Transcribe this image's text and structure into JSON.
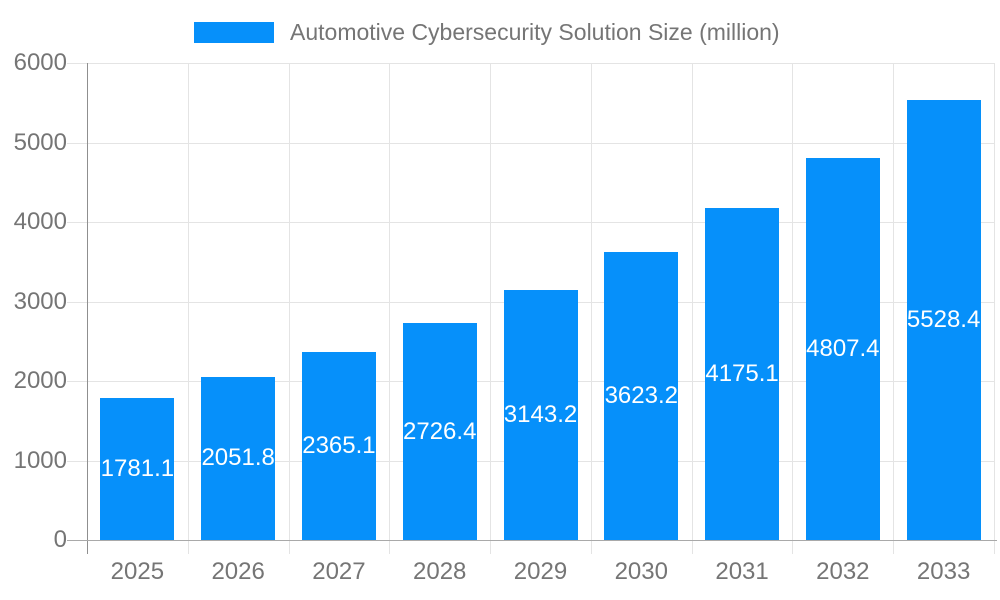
{
  "legend": {
    "label": "Automotive Cybersecurity Solution Size (million)"
  },
  "chart_data": {
    "type": "bar",
    "title": "Automotive Cybersecurity Solution Size (million)",
    "series_name": "Automotive Cybersecurity Solution Size (million)",
    "categories": [
      "2025",
      "2026",
      "2027",
      "2028",
      "2029",
      "2030",
      "2031",
      "2032",
      "2033"
    ],
    "values": [
      1781.1,
      2051.8,
      2365.1,
      2726.4,
      3143.2,
      3623.2,
      4175.1,
      4807.4,
      5528.4
    ],
    "value_labels": [
      "1781.1",
      "2051.8",
      "2365.1",
      "2726.4",
      "3143.2",
      "3623.2",
      "4175.1",
      "4807.4",
      "5528.4"
    ],
    "xlabel": "",
    "ylabel": "",
    "ylim": [
      0,
      6000
    ],
    "yticks": [
      0,
      1000,
      2000,
      3000,
      4000,
      5000,
      6000
    ],
    "grid": true,
    "legend_position": "top"
  },
  "colors": {
    "bar": "#0690fa",
    "gridline": "#e4e4e4",
    "y_axis_line": "#8f8f8f",
    "x_axis_line": "#a9a9a9",
    "tick_text": "#757575",
    "legend_text": "#757575",
    "value_label_text": "#ffffff",
    "background": "#ffffff"
  }
}
